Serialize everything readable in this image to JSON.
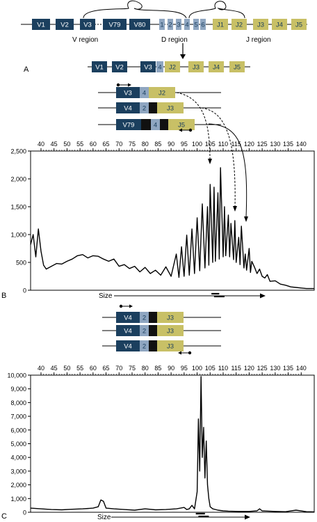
{
  "colors": {
    "v": "#1b3f5e",
    "d": "#8fa6c1",
    "j": "#c8c066",
    "black": "#111111",
    "line": "#000000"
  },
  "panel_labels": {
    "a": "A",
    "b": "B",
    "c": "C"
  },
  "germline": {
    "v_segments": [
      "V1",
      "V2",
      "V3",
      "V79",
      "V80"
    ],
    "d_segments": [
      "1",
      "2",
      "3",
      "4",
      "5",
      "6"
    ],
    "j_segments": [
      "J1",
      "J2",
      "J3",
      "J4",
      "J5"
    ],
    "region_labels": {
      "v": "V region",
      "d": "D region",
      "j": "J region"
    }
  },
  "rearranged": {
    "v_segments": [
      "V1",
      "V2",
      "V3"
    ],
    "d_segment": "4",
    "j_segments": [
      "J2",
      "J3",
      "J4",
      "J5"
    ]
  },
  "clones_b": [
    {
      "v": "V3",
      "d": "4",
      "j": "J2"
    },
    {
      "v": "V4",
      "d": "2",
      "j": "J3"
    },
    {
      "v": "V79",
      "d": "4",
      "j": "J5"
    }
  ],
  "clones_c": [
    {
      "v": "V4",
      "d": "2",
      "j": "J3"
    },
    {
      "v": "V4",
      "d": "2",
      "j": "J3"
    },
    {
      "v": "V4",
      "d": "2",
      "j": "J3"
    }
  ],
  "axis_label": "Size",
  "chart_data": [
    {
      "type": "line",
      "xlabel": "Size",
      "x_ticks": [
        40,
        45,
        50,
        55,
        60,
        65,
        70,
        75,
        80,
        85,
        90,
        95,
        100,
        105,
        110,
        115,
        120,
        125,
        130,
        135,
        140
      ],
      "y_ticks": [
        0,
        500,
        1000,
        1500,
        2000,
        2500
      ],
      "y_tick_labels": [
        "0",
        "500",
        "1,000",
        "1,500",
        "2,000",
        "2,500"
      ],
      "xlim": [
        36,
        145
      ],
      "ylim": [
        0,
        2500
      ],
      "series": [
        {
          "x": [
            36,
            37,
            38,
            39,
            40,
            41,
            42,
            44,
            46,
            48,
            50,
            52,
            54,
            56,
            58,
            60,
            62,
            64,
            66,
            68,
            70,
            72,
            74,
            76,
            78,
            80,
            82,
            84,
            86,
            88,
            90,
            92,
            93,
            94,
            95,
            96,
            97,
            98,
            99,
            100,
            101,
            102,
            103,
            104,
            104.5,
            105,
            106,
            106.5,
            107,
            108,
            108.5,
            109,
            110,
            110.5,
            111,
            112,
            112.5,
            113,
            114,
            114.5,
            115,
            116,
            116.5,
            117,
            118,
            118.5,
            119,
            120,
            120.5,
            121,
            122,
            123,
            124,
            125,
            126,
            127,
            128,
            130,
            132,
            134,
            136,
            138,
            140,
            142,
            145
          ],
          "y": [
            820,
            1000,
            600,
            1100,
            700,
            450,
            380,
            430,
            480,
            470,
            520,
            560,
            620,
            640,
            580,
            620,
            610,
            560,
            520,
            560,
            430,
            460,
            390,
            430,
            330,
            410,
            300,
            360,
            270,
            420,
            250,
            650,
            230,
            780,
            250,
            990,
            270,
            1100,
            300,
            1300,
            350,
            1550,
            400,
            1500,
            450,
            1900,
            500,
            1850,
            520,
            1750,
            560,
            2200,
            600,
            1500,
            620,
            1350,
            600,
            1200,
            550,
            1250,
            500,
            950,
            460,
            1150,
            400,
            650,
            360,
            750,
            320,
            520,
            420,
            300,
            380,
            250,
            220,
            280,
            160,
            170,
            110,
            90,
            60,
            50,
            40,
            30,
            30
          ]
        }
      ]
    },
    {
      "type": "line",
      "xlabel": "Size",
      "x_ticks": [
        40,
        45,
        50,
        55,
        60,
        65,
        70,
        75,
        80,
        85,
        90,
        95,
        100,
        105,
        110,
        115,
        120,
        125,
        130,
        135,
        140
      ],
      "y_ticks": [
        0,
        1000,
        2000,
        3000,
        4000,
        5000,
        6000,
        7000,
        8000,
        9000,
        10000
      ],
      "y_tick_labels": [
        "0",
        "1,000",
        "2,000",
        "3,000",
        "4,000",
        "5,000",
        "6,000",
        "7,000",
        "8,000",
        "9,000",
        "10,000"
      ],
      "xlim": [
        36,
        145
      ],
      "ylim": [
        0,
        10000
      ],
      "series": [
        {
          "x": [
            36,
            40,
            44,
            48,
            52,
            56,
            60,
            62,
            63,
            64,
            65,
            68,
            72,
            76,
            80,
            84,
            88,
            92,
            95,
            96,
            97,
            98,
            99,
            100,
            100.5,
            101,
            101.5,
            102,
            102.5,
            103,
            103.5,
            104,
            104.5,
            105,
            106,
            108,
            110,
            112,
            116,
            120,
            123,
            124,
            125,
            130,
            134,
            138,
            142,
            145
          ],
          "y": [
            300,
            250,
            200,
            180,
            220,
            250,
            300,
            400,
            900,
            800,
            300,
            250,
            200,
            150,
            250,
            180,
            200,
            250,
            350,
            200,
            250,
            500,
            250,
            1500,
            6800,
            3000,
            9900,
            4000,
            6200,
            2500,
            5200,
            2000,
            1000,
            400,
            250,
            150,
            100,
            80,
            60,
            60,
            100,
            250,
            100,
            60,
            40,
            150,
            40,
            30
          ]
        }
      ]
    }
  ]
}
